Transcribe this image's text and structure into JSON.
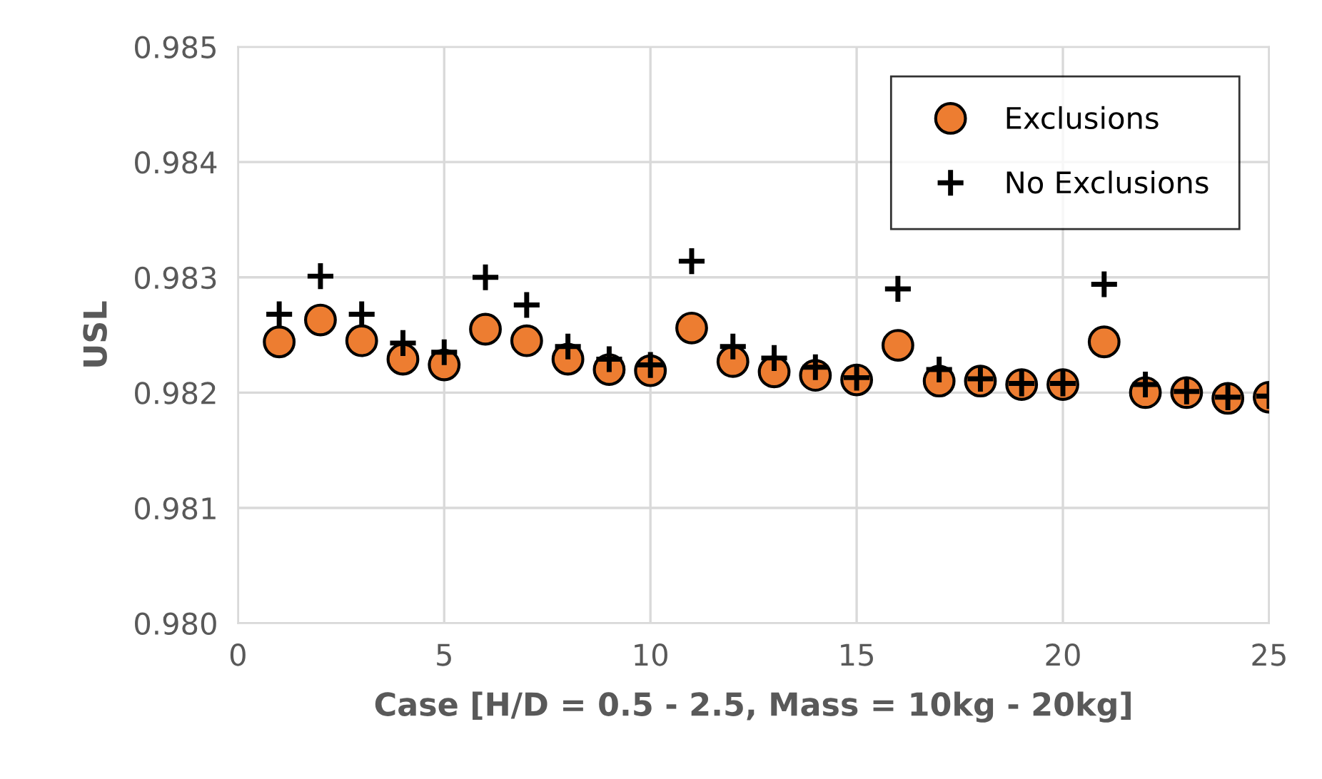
{
  "chart_data": {
    "type": "scatter",
    "xlabel": "Case [H/D = 0.5 - 2.5, Mass = 10kg - 20kg]",
    "ylabel": "USL",
    "x": [
      1,
      2,
      3,
      4,
      5,
      6,
      7,
      8,
      9,
      10,
      11,
      12,
      13,
      14,
      15,
      16,
      17,
      18,
      19,
      20,
      21,
      22,
      23,
      24,
      25
    ],
    "series": [
      {
        "name": "Exclusions",
        "color": "#ed7d31",
        "marker": "circle",
        "values": [
          0.98244,
          0.98263,
          0.98245,
          0.98229,
          0.98224,
          0.98255,
          0.98245,
          0.98229,
          0.9822,
          0.98219,
          0.98256,
          0.98227,
          0.98218,
          0.98215,
          0.98211,
          0.98241,
          0.9821,
          0.9821,
          0.98207,
          0.98207,
          0.98244,
          0.982,
          0.982,
          0.98195,
          0.98196
        ]
      },
      {
        "name": "No Exclusions",
        "color": "#000000",
        "marker": "cross",
        "values": [
          0.98268,
          0.98301,
          0.98268,
          0.98243,
          0.98235,
          0.983,
          0.98276,
          0.9824,
          0.98229,
          0.98224,
          0.98314,
          0.9824,
          0.9823,
          0.98222,
          0.98213,
          0.9829,
          0.9822,
          0.98212,
          0.98208,
          0.98208,
          0.98294,
          0.98207,
          0.98201,
          0.98196,
          0.98197
        ]
      }
    ],
    "xlim": [
      0,
      25
    ],
    "xticks": [
      0,
      5,
      10,
      15,
      20,
      25
    ],
    "ylim": [
      0.98,
      0.985
    ],
    "yticks": [
      {
        "value": 0.98,
        "label": "0.980"
      },
      0.981,
      0.982,
      0.983,
      0.984,
      0.985
    ],
    "grid": true,
    "legend": "top right"
  }
}
